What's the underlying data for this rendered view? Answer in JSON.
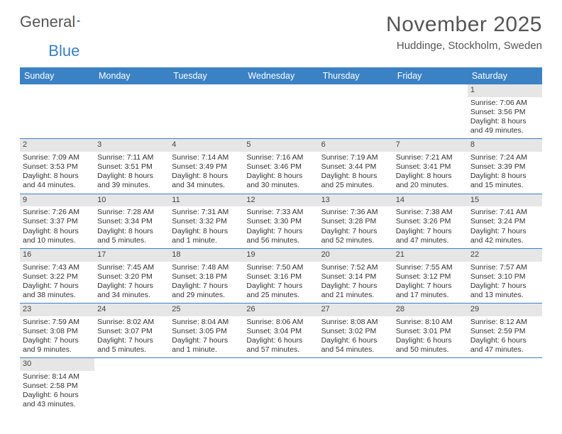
{
  "brand": {
    "part1": "General",
    "part2": "Blue"
  },
  "title": "November 2025",
  "location": "Huddinge, Stockholm, Sweden",
  "colors": {
    "header_bg": "#3b82c4",
    "header_text": "#ffffff",
    "daynum_bg": "#e6e6e6",
    "row_divider": "#3b82c4",
    "text": "#333333",
    "brand_accent": "#3b7fc4"
  },
  "weekdays": [
    "Sunday",
    "Monday",
    "Tuesday",
    "Wednesday",
    "Thursday",
    "Friday",
    "Saturday"
  ],
  "weeks": [
    [
      {
        "empty": true
      },
      {
        "empty": true
      },
      {
        "empty": true
      },
      {
        "empty": true
      },
      {
        "empty": true
      },
      {
        "empty": true
      },
      {
        "num": "1",
        "sunrise": "Sunrise: 7:06 AM",
        "sunset": "Sunset: 3:56 PM",
        "day1": "Daylight: 8 hours",
        "day2": "and 49 minutes."
      }
    ],
    [
      {
        "num": "2",
        "sunrise": "Sunrise: 7:09 AM",
        "sunset": "Sunset: 3:53 PM",
        "day1": "Daylight: 8 hours",
        "day2": "and 44 minutes."
      },
      {
        "num": "3",
        "sunrise": "Sunrise: 7:11 AM",
        "sunset": "Sunset: 3:51 PM",
        "day1": "Daylight: 8 hours",
        "day2": "and 39 minutes."
      },
      {
        "num": "4",
        "sunrise": "Sunrise: 7:14 AM",
        "sunset": "Sunset: 3:49 PM",
        "day1": "Daylight: 8 hours",
        "day2": "and 34 minutes."
      },
      {
        "num": "5",
        "sunrise": "Sunrise: 7:16 AM",
        "sunset": "Sunset: 3:46 PM",
        "day1": "Daylight: 8 hours",
        "day2": "and 30 minutes."
      },
      {
        "num": "6",
        "sunrise": "Sunrise: 7:19 AM",
        "sunset": "Sunset: 3:44 PM",
        "day1": "Daylight: 8 hours",
        "day2": "and 25 minutes."
      },
      {
        "num": "7",
        "sunrise": "Sunrise: 7:21 AM",
        "sunset": "Sunset: 3:41 PM",
        "day1": "Daylight: 8 hours",
        "day2": "and 20 minutes."
      },
      {
        "num": "8",
        "sunrise": "Sunrise: 7:24 AM",
        "sunset": "Sunset: 3:39 PM",
        "day1": "Daylight: 8 hours",
        "day2": "and 15 minutes."
      }
    ],
    [
      {
        "num": "9",
        "sunrise": "Sunrise: 7:26 AM",
        "sunset": "Sunset: 3:37 PM",
        "day1": "Daylight: 8 hours",
        "day2": "and 10 minutes."
      },
      {
        "num": "10",
        "sunrise": "Sunrise: 7:28 AM",
        "sunset": "Sunset: 3:34 PM",
        "day1": "Daylight: 8 hours",
        "day2": "and 5 minutes."
      },
      {
        "num": "11",
        "sunrise": "Sunrise: 7:31 AM",
        "sunset": "Sunset: 3:32 PM",
        "day1": "Daylight: 8 hours",
        "day2": "and 1 minute."
      },
      {
        "num": "12",
        "sunrise": "Sunrise: 7:33 AM",
        "sunset": "Sunset: 3:30 PM",
        "day1": "Daylight: 7 hours",
        "day2": "and 56 minutes."
      },
      {
        "num": "13",
        "sunrise": "Sunrise: 7:36 AM",
        "sunset": "Sunset: 3:28 PM",
        "day1": "Daylight: 7 hours",
        "day2": "and 52 minutes."
      },
      {
        "num": "14",
        "sunrise": "Sunrise: 7:38 AM",
        "sunset": "Sunset: 3:26 PM",
        "day1": "Daylight: 7 hours",
        "day2": "and 47 minutes."
      },
      {
        "num": "15",
        "sunrise": "Sunrise: 7:41 AM",
        "sunset": "Sunset: 3:24 PM",
        "day1": "Daylight: 7 hours",
        "day2": "and 42 minutes."
      }
    ],
    [
      {
        "num": "16",
        "sunrise": "Sunrise: 7:43 AM",
        "sunset": "Sunset: 3:22 PM",
        "day1": "Daylight: 7 hours",
        "day2": "and 38 minutes."
      },
      {
        "num": "17",
        "sunrise": "Sunrise: 7:45 AM",
        "sunset": "Sunset: 3:20 PM",
        "day1": "Daylight: 7 hours",
        "day2": "and 34 minutes."
      },
      {
        "num": "18",
        "sunrise": "Sunrise: 7:48 AM",
        "sunset": "Sunset: 3:18 PM",
        "day1": "Daylight: 7 hours",
        "day2": "and 29 minutes."
      },
      {
        "num": "19",
        "sunrise": "Sunrise: 7:50 AM",
        "sunset": "Sunset: 3:16 PM",
        "day1": "Daylight: 7 hours",
        "day2": "and 25 minutes."
      },
      {
        "num": "20",
        "sunrise": "Sunrise: 7:52 AM",
        "sunset": "Sunset: 3:14 PM",
        "day1": "Daylight: 7 hours",
        "day2": "and 21 minutes."
      },
      {
        "num": "21",
        "sunrise": "Sunrise: 7:55 AM",
        "sunset": "Sunset: 3:12 PM",
        "day1": "Daylight: 7 hours",
        "day2": "and 17 minutes."
      },
      {
        "num": "22",
        "sunrise": "Sunrise: 7:57 AM",
        "sunset": "Sunset: 3:10 PM",
        "day1": "Daylight: 7 hours",
        "day2": "and 13 minutes."
      }
    ],
    [
      {
        "num": "23",
        "sunrise": "Sunrise: 7:59 AM",
        "sunset": "Sunset: 3:08 PM",
        "day1": "Daylight: 7 hours",
        "day2": "and 9 minutes."
      },
      {
        "num": "24",
        "sunrise": "Sunrise: 8:02 AM",
        "sunset": "Sunset: 3:07 PM",
        "day1": "Daylight: 7 hours",
        "day2": "and 5 minutes."
      },
      {
        "num": "25",
        "sunrise": "Sunrise: 8:04 AM",
        "sunset": "Sunset: 3:05 PM",
        "day1": "Daylight: 7 hours",
        "day2": "and 1 minute."
      },
      {
        "num": "26",
        "sunrise": "Sunrise: 8:06 AM",
        "sunset": "Sunset: 3:04 PM",
        "day1": "Daylight: 6 hours",
        "day2": "and 57 minutes."
      },
      {
        "num": "27",
        "sunrise": "Sunrise: 8:08 AM",
        "sunset": "Sunset: 3:02 PM",
        "day1": "Daylight: 6 hours",
        "day2": "and 54 minutes."
      },
      {
        "num": "28",
        "sunrise": "Sunrise: 8:10 AM",
        "sunset": "Sunset: 3:01 PM",
        "day1": "Daylight: 6 hours",
        "day2": "and 50 minutes."
      },
      {
        "num": "29",
        "sunrise": "Sunrise: 8:12 AM",
        "sunset": "Sunset: 2:59 PM",
        "day1": "Daylight: 6 hours",
        "day2": "and 47 minutes."
      }
    ],
    [
      {
        "num": "30",
        "sunrise": "Sunrise: 8:14 AM",
        "sunset": "Sunset: 2:58 PM",
        "day1": "Daylight: 6 hours",
        "day2": "and 43 minutes."
      },
      {
        "empty": true
      },
      {
        "empty": true
      },
      {
        "empty": true
      },
      {
        "empty": true
      },
      {
        "empty": true
      },
      {
        "empty": true
      }
    ]
  ]
}
